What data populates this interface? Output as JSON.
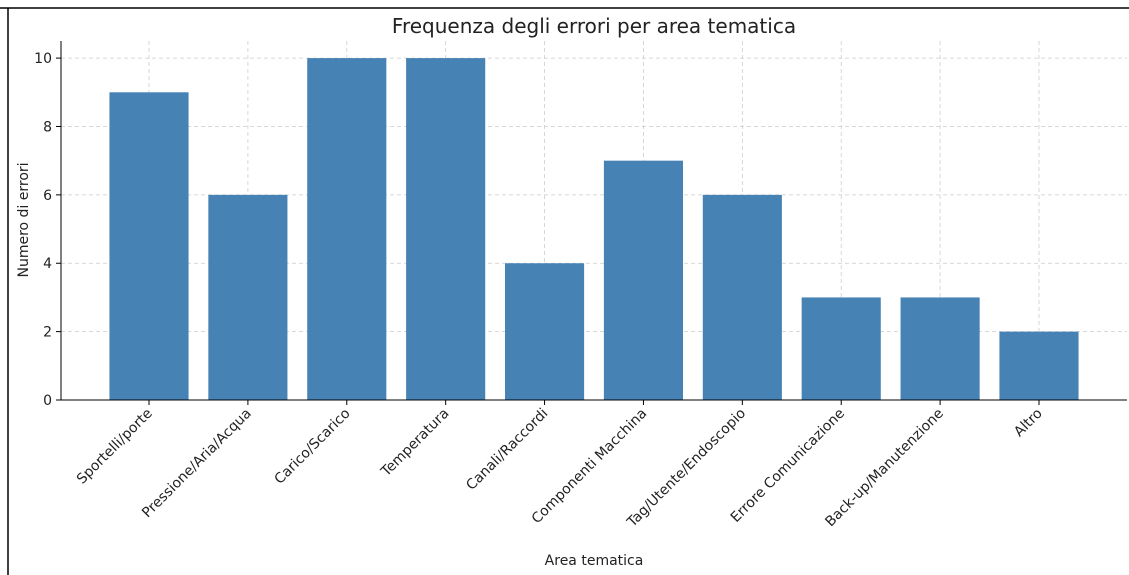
{
  "chart_data": {
    "type": "bar",
    "title": "Frequenza degli errori per area tematica",
    "x_label": "Area tematica",
    "y_label": "Numero di errori",
    "categories": [
      "Sportelli/porte",
      "Pressione/Aria/Acqua",
      "Carico/Scarico",
      "Temperatura",
      "Canali/Raccordi",
      "Componenti Macchina",
      "Tag/Utente/Endoscopio",
      "Errore Comunicazione",
      "Back-up/Manutenzione",
      "Altro"
    ],
    "values": [
      9,
      6,
      10,
      10,
      4,
      7,
      6,
      3,
      3,
      2
    ],
    "color": "#4682b4",
    "ylim": [
      0,
      10.5
    ],
    "yticks": [
      0,
      2,
      4,
      6,
      8,
      10
    ],
    "grid": true
  }
}
